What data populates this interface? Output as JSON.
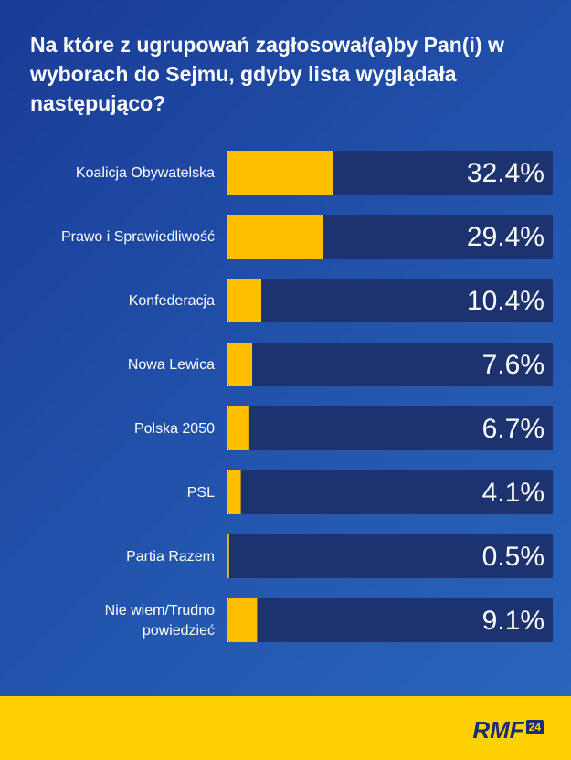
{
  "colors": {
    "background": "#1f4ba6",
    "track": "#1c3370",
    "bar": "#ffbf00",
    "text": "#ffffff",
    "footer": "#ffd200",
    "logo": "#1c2e6e"
  },
  "chart_data": {
    "type": "bar",
    "orientation": "horizontal",
    "title": "Na które z ugrupowań zagłosował(a)by Pan(i) w wyborach do Sejmu, gdyby lista wyglądała następująco?",
    "categories": [
      [
        "Koalicja Obywatelska"
      ],
      [
        "Prawo i Sprawiedliwość"
      ],
      [
        "Konfederacja"
      ],
      [
        "Nowa Lewica"
      ],
      [
        "Polska 2050"
      ],
      [
        "PSL"
      ],
      [
        "Partia Razem"
      ],
      [
        "Nie wiem/Trudno",
        "powiedzieć"
      ]
    ],
    "values": [
      32.4,
      29.4,
      10.4,
      7.6,
      6.7,
      4.1,
      0.5,
      9.1
    ],
    "value_labels": [
      "32.4%",
      "29.4%",
      "10.4%",
      "7.6%",
      "6.7%",
      "4.1%",
      "0.5%",
      "9.1%"
    ],
    "unit": "%",
    "xlim": [
      0,
      100
    ]
  },
  "footer": {
    "logo_text": "RMF",
    "logo_badge": "24"
  }
}
